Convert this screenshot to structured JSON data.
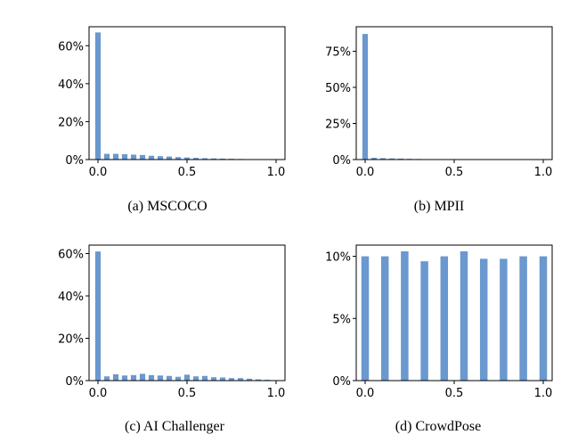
{
  "chart_data": [
    {
      "type": "bar",
      "caption": "(a)  MSCOCO",
      "xlim": [
        -0.05,
        1.05
      ],
      "ylim": [
        0,
        70
      ],
      "xticks": [
        0,
        0.5,
        1
      ],
      "xtick_labels": [
        "0.0",
        "0.5",
        "1.0"
      ],
      "yticks": [
        0,
        20,
        40,
        60
      ],
      "ytick_labels": [
        "0%",
        "20%",
        "40%",
        "60%"
      ],
      "x": [
        0,
        0.05,
        0.1,
        0.15,
        0.2,
        0.25,
        0.3,
        0.35,
        0.4,
        0.45,
        0.5,
        0.55,
        0.6,
        0.65,
        0.7,
        0.75,
        0.8,
        0.85,
        0.9,
        0.95,
        1.0
      ],
      "values": [
        67,
        3.0,
        3.0,
        2.8,
        2.6,
        2.4,
        2.0,
        1.8,
        1.6,
        1.3,
        1.1,
        0.9,
        0.7,
        0.6,
        0.5,
        0.4,
        0.3,
        0.2,
        0.2,
        0.1,
        0.1
      ]
    },
    {
      "type": "bar",
      "caption": "(b)  MPII",
      "xlim": [
        -0.05,
        1.05
      ],
      "ylim": [
        0,
        92
      ],
      "xticks": [
        0,
        0.5,
        1
      ],
      "xtick_labels": [
        "0.0",
        "0.5",
        "1.0"
      ],
      "yticks": [
        0,
        25,
        50,
        75
      ],
      "ytick_labels": [
        "0%",
        "25%",
        "50%",
        "75%"
      ],
      "x": [
        0,
        0.05,
        0.1,
        0.15,
        0.2,
        0.25,
        0.3,
        0.35,
        0.4,
        0.45,
        0.5,
        0.55,
        0.6,
        0.65,
        0.7,
        0.75,
        0.8,
        0.85,
        0.9,
        0.95,
        1.0
      ],
      "values": [
        87,
        1.2,
        1.0,
        0.8,
        0.7,
        0.5,
        0.4,
        0.3,
        0.2,
        0.2,
        0.1,
        0.1,
        0.1,
        0.1,
        0.1,
        0.1,
        0.1,
        0.1,
        0.1,
        0.1,
        0.1
      ]
    },
    {
      "type": "bar",
      "caption": "(c)  AI Challenger",
      "xlim": [
        -0.05,
        1.05
      ],
      "ylim": [
        0,
        64
      ],
      "xticks": [
        0,
        0.5,
        1
      ],
      "xtick_labels": [
        "0.0",
        "0.5",
        "1.0"
      ],
      "yticks": [
        0,
        20,
        40,
        60
      ],
      "ytick_labels": [
        "0%",
        "20%",
        "40%",
        "60%"
      ],
      "x": [
        0,
        0.05,
        0.1,
        0.15,
        0.2,
        0.25,
        0.3,
        0.35,
        0.4,
        0.45,
        0.5,
        0.55,
        0.6,
        0.65,
        0.7,
        0.75,
        0.8,
        0.85,
        0.9,
        0.95,
        1.0
      ],
      "values": [
        61,
        2.0,
        3.0,
        2.4,
        2.6,
        3.2,
        2.6,
        2.4,
        2.2,
        1.8,
        2.8,
        2.0,
        2.2,
        1.6,
        1.5,
        1.2,
        1.2,
        0.9,
        0.6,
        0.4,
        0.2
      ]
    },
    {
      "type": "bar",
      "caption": "(d)  CrowdPose",
      "xlim": [
        -0.05,
        1.05
      ],
      "ylim": [
        0,
        10.9
      ],
      "xticks": [
        0,
        0.5,
        1
      ],
      "xtick_labels": [
        "0.0",
        "0.5",
        "1.0"
      ],
      "yticks": [
        0,
        5,
        10
      ],
      "ytick_labels": [
        "0%",
        "5%",
        "10%"
      ],
      "x": [
        0,
        0.111,
        0.222,
        0.333,
        0.444,
        0.555,
        0.666,
        0.777,
        0.888,
        1.0
      ],
      "values": [
        10.0,
        10.0,
        10.4,
        9.6,
        10.0,
        10.4,
        9.8,
        9.8,
        10.0,
        10.0
      ]
    }
  ]
}
